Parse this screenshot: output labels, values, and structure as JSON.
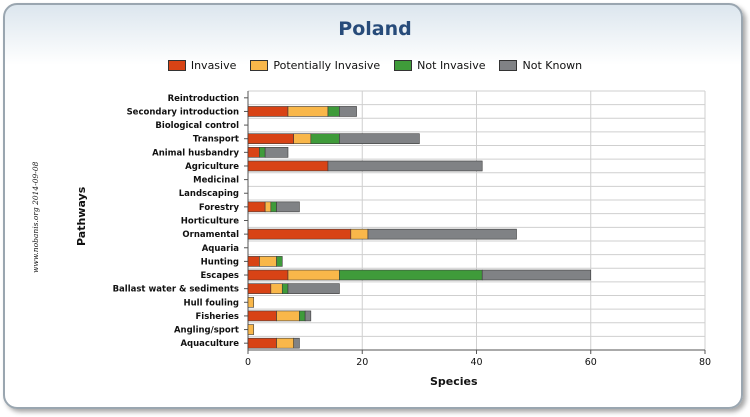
{
  "chart_data": {
    "type": "bar",
    "orientation": "horizontal",
    "stacked": true,
    "title": "Poland",
    "xlabel": "Species",
    "ylabel": "Pathways",
    "xlim": [
      0,
      80
    ],
    "xticks": [
      0,
      20,
      40,
      60,
      80
    ],
    "grid": true,
    "legend_position": "top",
    "credit": "www.nobanis.org 2014-09-08",
    "categories": [
      "Reintroduction",
      "Secondary introduction",
      "Biological control",
      "Transport",
      "Animal husbandry",
      "Agriculture",
      "Medicinal",
      "Landscaping",
      "Forestry",
      "Horticulture",
      "Ornamental",
      "Aquaria",
      "Hunting",
      "Escapes",
      "Ballast water & sediments",
      "Hull fouling",
      "Fisheries",
      "Angling/sport",
      "Aquaculture"
    ],
    "series": [
      {
        "name": "Invasive",
        "color": "#d84315",
        "values": [
          0,
          7,
          0,
          8,
          2,
          14,
          0,
          0,
          3,
          0,
          18,
          0,
          2,
          7,
          4,
          0,
          5,
          0,
          5
        ]
      },
      {
        "name": "Potentially Invasive",
        "color": "#f9b74a",
        "values": [
          0,
          7,
          0,
          3,
          0,
          0,
          0,
          0,
          1,
          0,
          3,
          0,
          3,
          9,
          2,
          1,
          4,
          1,
          3
        ]
      },
      {
        "name": "Not Invasive",
        "color": "#3f9b3a",
        "values": [
          0,
          2,
          0,
          5,
          1,
          0,
          0,
          0,
          1,
          0,
          0,
          0,
          1,
          25,
          1,
          0,
          1,
          0,
          0
        ]
      },
      {
        "name": "Not Known",
        "color": "#808285",
        "values": [
          0,
          3,
          0,
          14,
          4,
          27,
          0,
          0,
          4,
          0,
          26,
          0,
          0,
          19,
          9,
          0,
          1,
          0,
          1
        ]
      }
    ]
  }
}
